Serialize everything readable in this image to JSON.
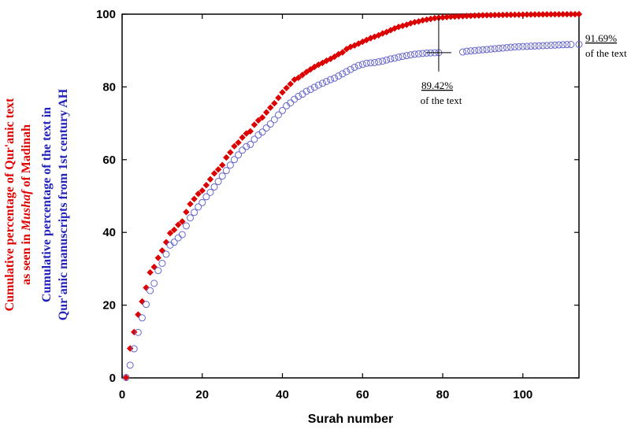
{
  "chart_data": {
    "type": "scatter",
    "xlabel": "Surah number",
    "ylabel_series": [
      {
        "lines": [
          "Cumulative percentage of Qur'anic text",
          "as seen in <i>Mushaf</i> of Madinah"
        ],
        "color": "#e00000"
      },
      {
        "lines": [
          "Cumulative percentage of the text in",
          "Qur'anic manuscripts from 1st century AH"
        ],
        "color": "#2222bb"
      }
    ],
    "xlim": [
      0,
      114
    ],
    "ylim": [
      0,
      100
    ],
    "xticks": [
      0,
      20,
      40,
      60,
      80,
      100
    ],
    "yticks": [
      0,
      20,
      40,
      60,
      80,
      100
    ],
    "annotations": [
      {
        "text": "89.42%",
        "underline": true,
        "x": 79,
        "y": 89.42
      },
      {
        "text": "of the text",
        "x": 79,
        "y": 89.42
      },
      {
        "text": "91.69%",
        "underline": true,
        "x": 114,
        "y": 91.69
      },
      {
        "text": "of the text",
        "x": 114,
        "y": 91.69
      }
    ],
    "series": [
      {
        "marker": "diamond-filled",
        "color": "#dd0000",
        "x": [
          1,
          2,
          3,
          4,
          5,
          6,
          7,
          8,
          9,
          10,
          11,
          12,
          13,
          14,
          15,
          16,
          17,
          18,
          19,
          20,
          21,
          22,
          23,
          24,
          25,
          26,
          27,
          28,
          29,
          30,
          31,
          32,
          33,
          34,
          35,
          36,
          37,
          38,
          39,
          40,
          41,
          42,
          43,
          44,
          45,
          46,
          47,
          48,
          49,
          50,
          51,
          52,
          53,
          54,
          55,
          56,
          57,
          58,
          59,
          60,
          61,
          62,
          63,
          64,
          65,
          66,
          67,
          68,
          69,
          70,
          71,
          72,
          73,
          74,
          75,
          76,
          77,
          78,
          79,
          80,
          81,
          82,
          83,
          84,
          85,
          86,
          87,
          88,
          89,
          90,
          91,
          92,
          93,
          94,
          95,
          96,
          97,
          98,
          99,
          100,
          101,
          102,
          103,
          104,
          105,
          106,
          107,
          108,
          109,
          110,
          111,
          112,
          113,
          114
        ],
        "values": [
          0.1,
          8.1,
          12.6,
          17.4,
          21.0,
          24.8,
          29.0,
          30.5,
          33.0,
          35.0,
          37.3,
          39.8,
          40.7,
          42.1,
          43.0,
          45.6,
          47.8,
          49.2,
          50.6,
          51.5,
          53.0,
          54.6,
          56.2,
          57.3,
          58.5,
          60.6,
          62.0,
          63.7,
          64.7,
          66.1,
          67.2,
          67.8,
          69.6,
          70.8,
          71.6,
          73.0,
          74.3,
          75.5,
          77.0,
          78.5,
          79.7,
          80.8,
          82.0,
          82.5,
          83.3,
          84.1,
          84.8,
          85.5,
          86.1,
          86.6,
          87.2,
          87.7,
          88.3,
          89.0,
          89.5,
          90.4,
          91.0,
          91.4,
          91.9,
          92.4,
          92.9,
          93.4,
          93.8,
          94.2,
          94.7,
          95.1,
          95.6,
          96.1,
          96.5,
          96.8,
          97.1,
          97.5,
          97.8,
          98.0,
          98.3,
          98.5,
          98.7,
          98.9,
          99.0,
          99.1,
          99.2,
          99.3,
          99.35,
          99.4,
          99.45,
          99.5,
          99.55,
          99.6,
          99.65,
          99.7,
          99.72,
          99.74,
          99.76,
          99.78,
          99.8,
          99.82,
          99.84,
          99.85,
          99.86,
          99.88,
          99.9,
          99.91,
          99.92,
          99.93,
          99.94,
          99.95,
          99.96,
          99.97,
          99.97,
          99.98,
          99.98,
          99.99,
          99.99,
          100
        ]
      },
      {
        "marker": "circle-open",
        "color": "#6666cc",
        "x": [
          1,
          2,
          3,
          4,
          5,
          6,
          7,
          8,
          9,
          10,
          11,
          12,
          13,
          14,
          15,
          16,
          17,
          18,
          19,
          20,
          21,
          22,
          23,
          24,
          25,
          26,
          27,
          28,
          29,
          30,
          31,
          32,
          33,
          34,
          35,
          36,
          37,
          38,
          39,
          40,
          41,
          42,
          43,
          44,
          45,
          46,
          47,
          48,
          49,
          50,
          51,
          52,
          53,
          54,
          55,
          56,
          57,
          58,
          59,
          60,
          61,
          62,
          63,
          64,
          65,
          66,
          67,
          68,
          69,
          70,
          71,
          72,
          73,
          74,
          75,
          76,
          77,
          78,
          79,
          85,
          86,
          87,
          88,
          89,
          90,
          91,
          92,
          93,
          94,
          95,
          96,
          97,
          98,
          99,
          100,
          101,
          102,
          103,
          104,
          105,
          106,
          107,
          108,
          109,
          110,
          111,
          112,
          114
        ],
        "values": [
          0.1,
          3.5,
          8.0,
          12.5,
          16.5,
          20.2,
          24.0,
          26.0,
          29.5,
          31.5,
          34.0,
          36.5,
          37.3,
          38.5,
          39.4,
          41.8,
          44.0,
          45.5,
          47.0,
          48.2,
          49.8,
          51.0,
          52.5,
          54.0,
          55.5,
          57.0,
          58.5,
          60.0,
          61.3,
          62.6,
          63.6,
          64.2,
          65.6,
          66.8,
          67.6,
          68.7,
          69.8,
          71.0,
          72.3,
          73.5,
          74.8,
          75.6,
          76.6,
          77.4,
          78.0,
          78.8,
          79.3,
          79.9,
          80.5,
          81.0,
          81.5,
          82.0,
          82.4,
          83.0,
          83.6,
          84.2,
          84.8,
          85.4,
          85.9,
          86.2,
          86.5,
          86.6,
          86.7,
          86.9,
          87.1,
          87.4,
          87.7,
          87.9,
          88.2,
          88.4,
          88.6,
          88.8,
          89.0,
          89.1,
          89.2,
          89.3,
          89.35,
          89.4,
          89.42,
          89.6,
          89.8,
          89.9,
          90.0,
          90.1,
          90.2,
          90.3,
          90.4,
          90.5,
          90.6,
          90.7,
          90.8,
          90.9,
          91.0,
          91.05,
          91.1,
          91.15,
          91.2,
          91.25,
          91.3,
          91.35,
          91.4,
          91.45,
          91.5,
          91.55,
          91.6,
          91.63,
          91.66,
          91.69
        ]
      }
    ]
  }
}
